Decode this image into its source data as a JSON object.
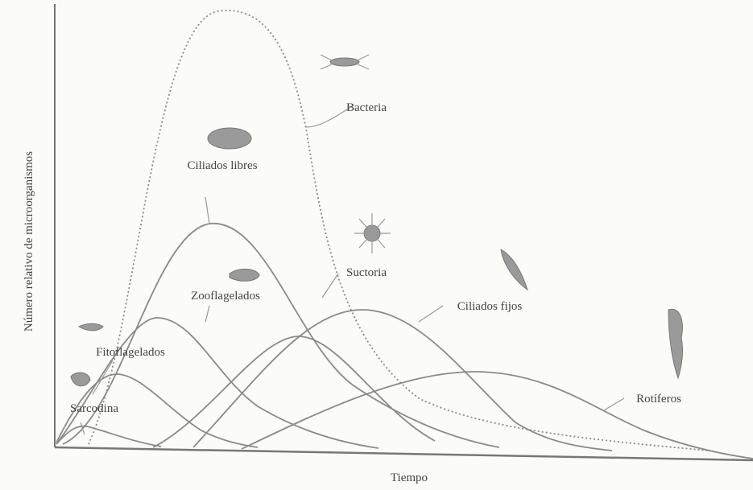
{
  "axes": {
    "y_label": "Número relativo de microorganismos",
    "x_label": "Tiempo"
  },
  "curves": [
    {
      "label": "Bacteria"
    },
    {
      "label": "Ciliados libres"
    },
    {
      "label": "Suctoria"
    },
    {
      "label": "Zooflagelados"
    },
    {
      "label": "Ciliados fijos"
    },
    {
      "label": "Fitoflagelados"
    },
    {
      "label": "Sarcodina"
    },
    {
      "label": "Rotíferos"
    }
  ]
}
